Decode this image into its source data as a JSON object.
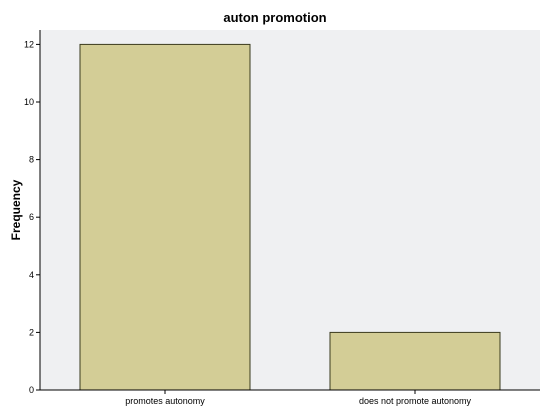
{
  "chart_data": {
    "type": "bar",
    "title": "auton promotion",
    "xlabel": "",
    "ylabel": "Frequency",
    "categories": [
      "promotes autonomy",
      "does not promote autonomy"
    ],
    "values": [
      12,
      2
    ],
    "ylim": [
      0,
      12.5
    ],
    "yticks": [
      "0",
      "2",
      "4",
      "6",
      "8",
      "10",
      "12"
    ],
    "grid": false,
    "colors": {
      "bar_fill": "#d3cd96",
      "bar_stroke": "#3a3a1e",
      "plot_background": "#eff0f2",
      "axis": "#000000"
    }
  }
}
